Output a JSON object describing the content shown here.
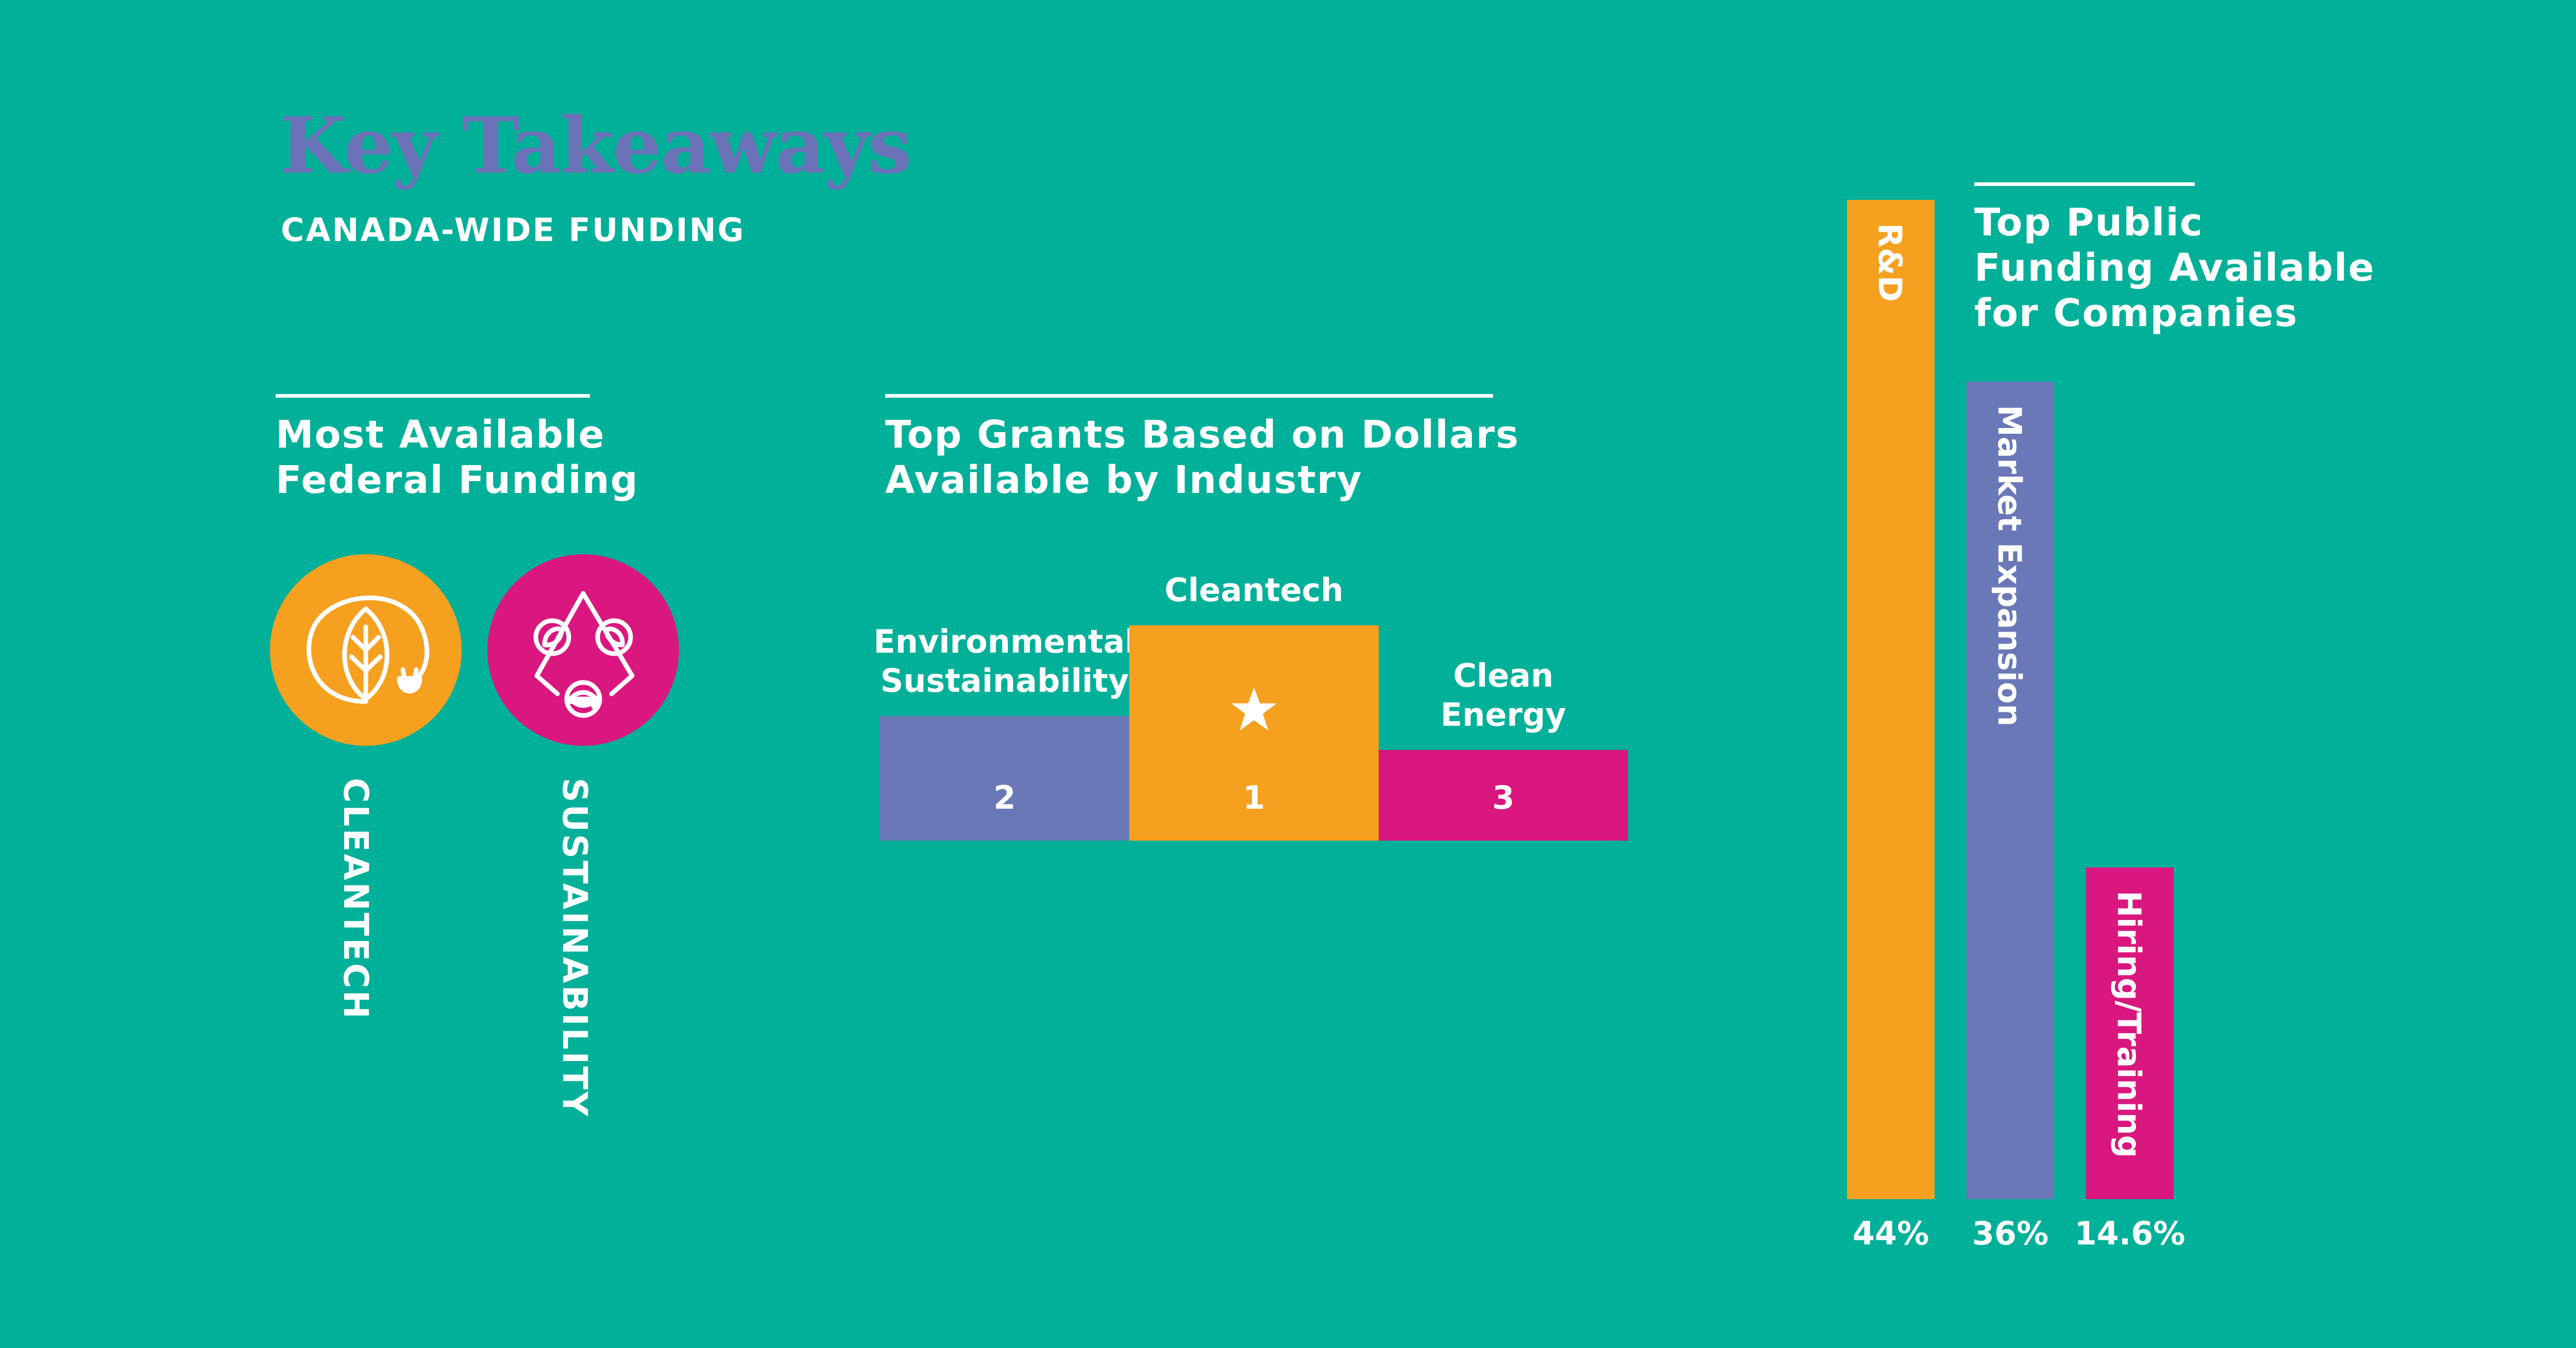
{
  "header": {
    "title": "Key Takeaways",
    "subtitle": "CANADA-WIDE FUNDING"
  },
  "federal": {
    "heading_line1": "Most Available",
    "heading_line2": "Federal Funding",
    "items": [
      {
        "label": "CLEANTECH",
        "color": "#f6a01f",
        "icon": "leaf-plug-icon"
      },
      {
        "label": "SUSTAINABILITY",
        "color": "#d9177f",
        "icon": "recycle-leaves-icon"
      }
    ]
  },
  "grants": {
    "heading_line1": "Top Grants Based on Dollars",
    "heading_line2": "Available by Industry"
  },
  "public": {
    "heading_line1": "Top Public",
    "heading_line2": "Funding Available",
    "heading_line3": "for Companies"
  },
  "chart_data": [
    {
      "type": "bar",
      "title": "Top Grants Based on Dollars Available by Industry",
      "categories": [
        "Environmental Sustainability",
        "Cleantech",
        "Clean Energy"
      ],
      "label_lines": [
        [
          "Environmental",
          "Sustainability"
        ],
        [
          "Cleantech"
        ],
        [
          "Clean",
          "Energy"
        ]
      ],
      "ranks": [
        "2",
        "1",
        "3"
      ],
      "relative_heights": [
        0.55,
        0.95,
        0.4
      ],
      "colors": [
        "#6b78b8",
        "#f6a01f",
        "#d9177f"
      ]
    },
    {
      "type": "bar",
      "title": "Top Public Funding Available for Companies",
      "categories": [
        "R&D",
        "Market Expansion",
        "Hiring/Training"
      ],
      "values": [
        44,
        36,
        14.6
      ],
      "value_labels": [
        "44%",
        "36%",
        "14.6%"
      ],
      "unit": "%",
      "ylim": [
        0,
        44
      ],
      "colors": [
        "#f6a01f",
        "#6b78b8",
        "#d9177f"
      ]
    }
  ]
}
